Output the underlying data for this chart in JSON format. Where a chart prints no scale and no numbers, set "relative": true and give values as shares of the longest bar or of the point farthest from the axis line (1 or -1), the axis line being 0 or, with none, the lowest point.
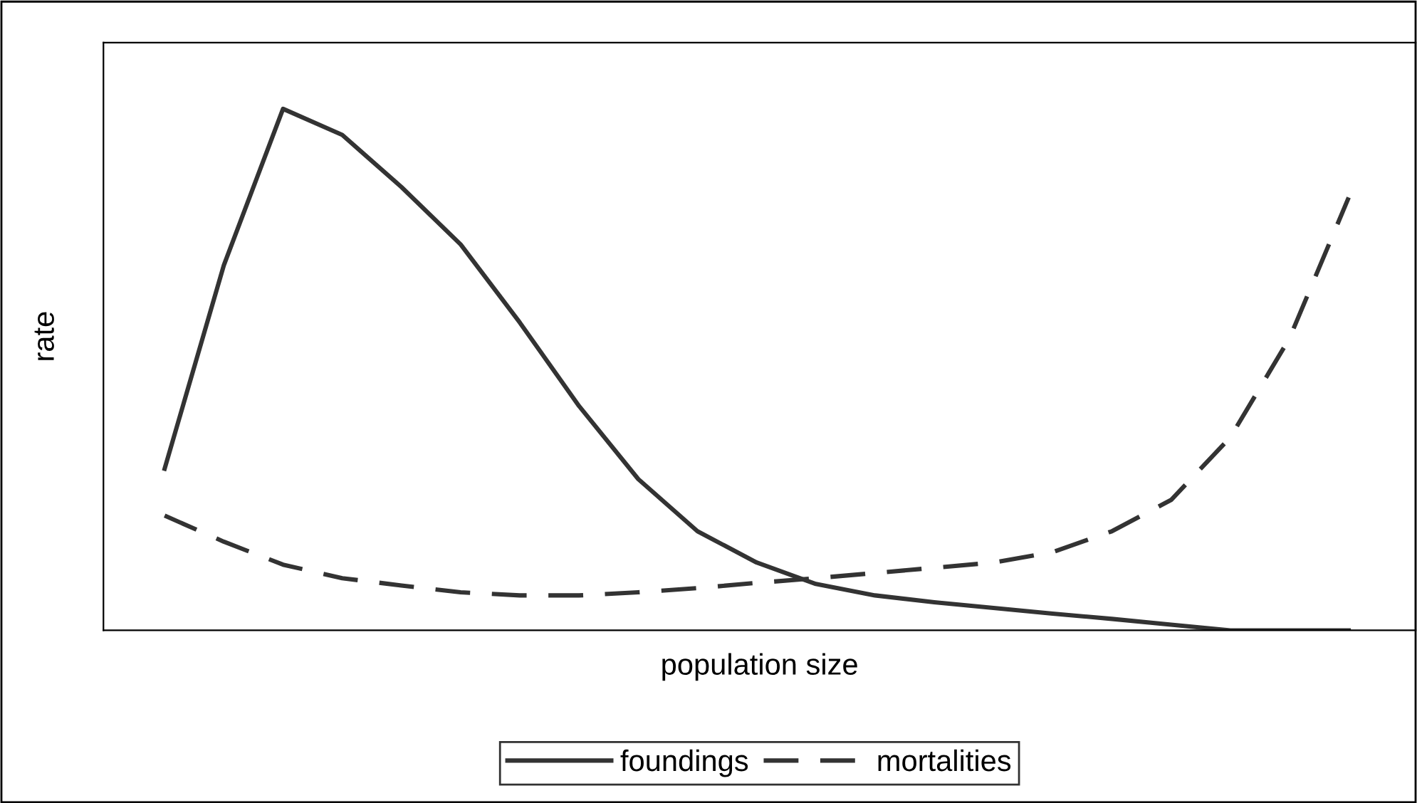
{
  "chart_data": {
    "type": "line",
    "relative": true,
    "xlabel": "population size",
    "ylabel": "rate",
    "categories": [
      null,
      null,
      null,
      null,
      null,
      null,
      null,
      null,
      null,
      null,
      null,
      null,
      null,
      null,
      null,
      null,
      null,
      null,
      null,
      null,
      null
    ],
    "series": [
      {
        "name": "foundings",
        "color": "#333333",
        "line_style": "solid",
        "values": [
          0.31,
          0.7,
          1.0,
          0.95,
          0.85,
          0.74,
          0.59,
          0.43,
          0.29,
          0.19,
          0.13,
          0.089,
          0.067,
          0.054,
          0.043,
          0.032,
          0.022,
          0.011,
          0,
          0,
          0
        ]
      },
      {
        "name": "mortalities",
        "color": "#333333",
        "line_style": "dashed",
        "values": [
          0.22,
          0.17,
          0.126,
          0.1,
          0.086,
          0.073,
          0.067,
          0.067,
          0.073,
          0.081,
          0.091,
          0.1,
          0.11,
          0.12,
          0.13,
          0.15,
          0.19,
          0.25,
          0.37,
          0.56,
          0.83
        ]
      }
    ],
    "legend": "bottom",
    "grid": false,
    "marker": "none"
  }
}
